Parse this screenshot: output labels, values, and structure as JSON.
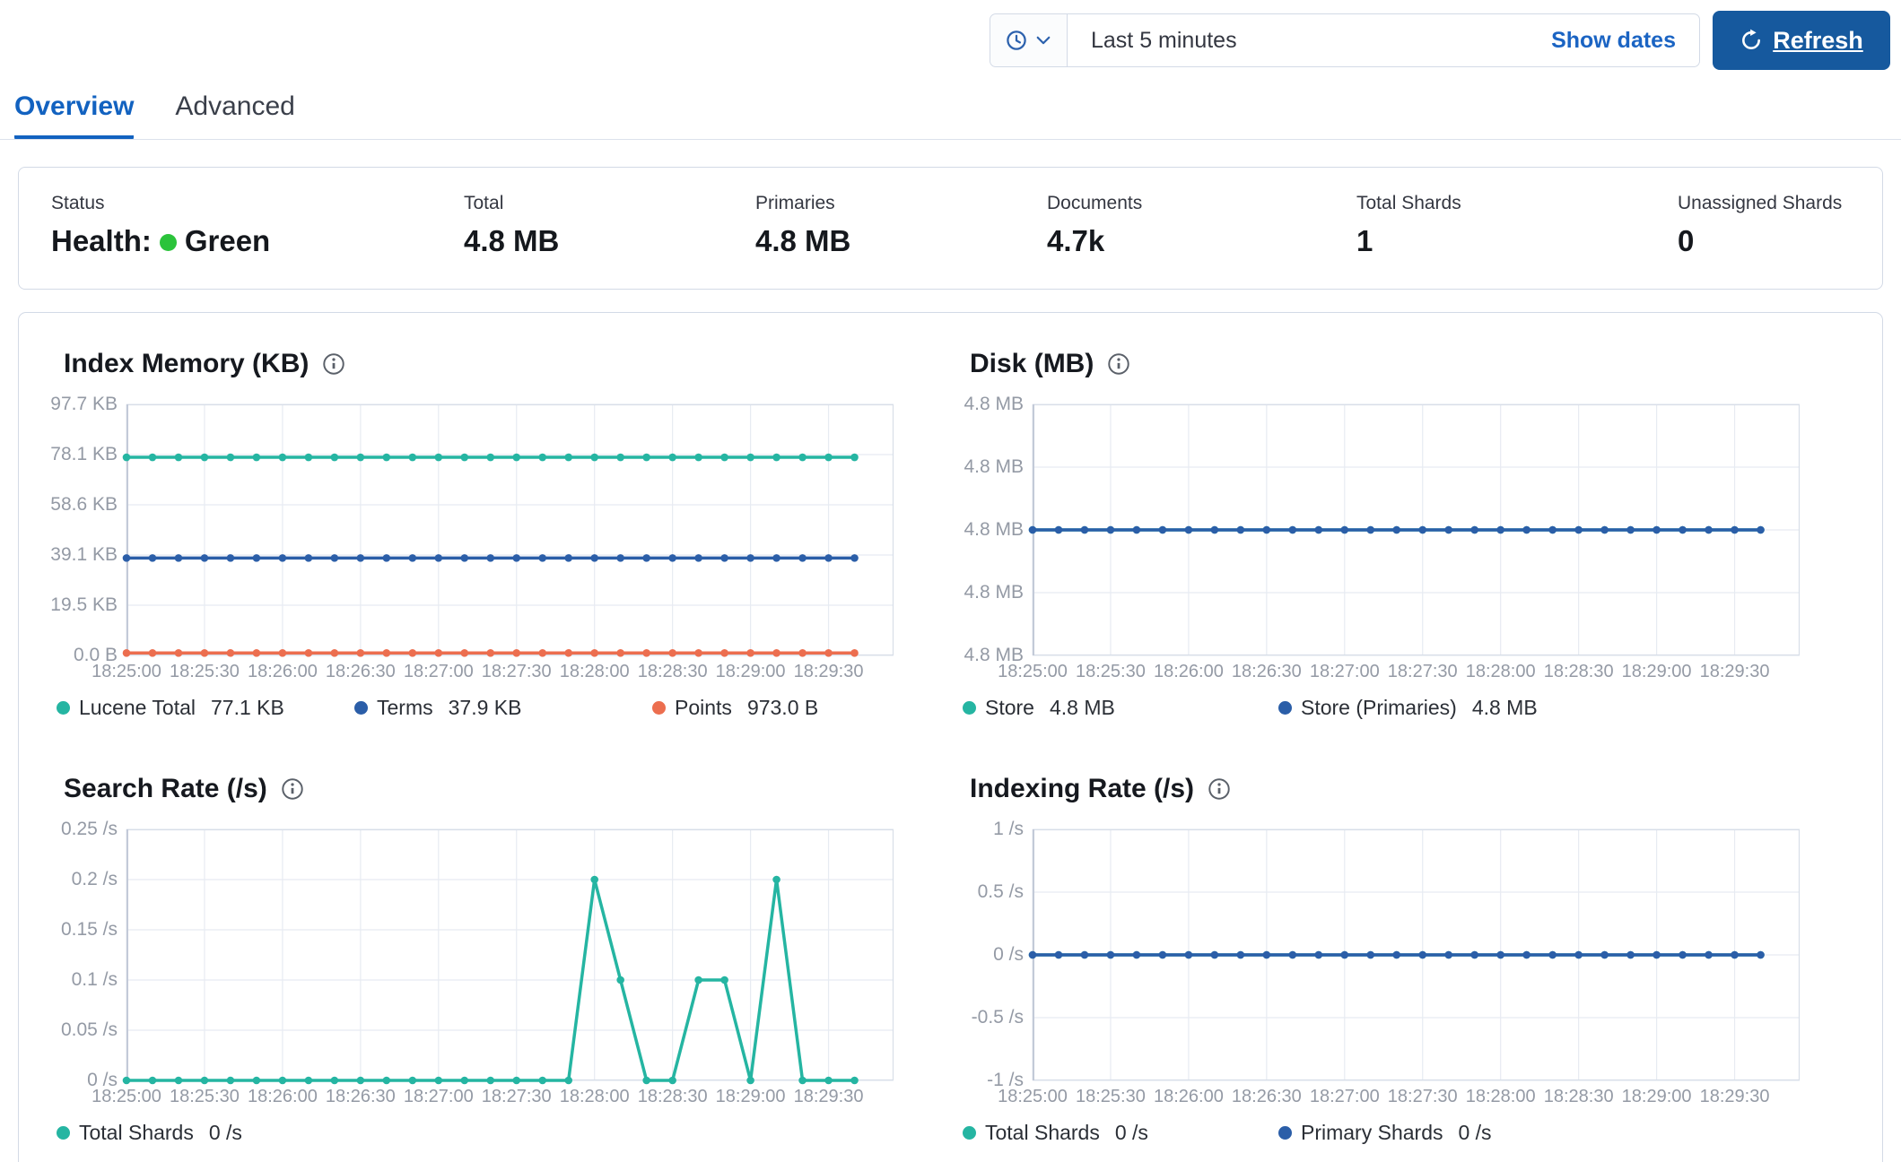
{
  "time_picker": {
    "selected": "Last 5 minutes",
    "show_dates_label": "Show dates",
    "refresh_label": "Refresh",
    "icons": [
      "clock-icon",
      "chevron-down-icon",
      "refresh-icon"
    ]
  },
  "tabs": [
    {
      "label": "Overview",
      "active": true
    },
    {
      "label": "Advanced",
      "active": false
    }
  ],
  "status_bar": {
    "items": [
      {
        "label": "Status",
        "value_prefix": "Health:",
        "value": "Green",
        "dot_color": "#2BC33B"
      },
      {
        "label": "Total",
        "value": "4.8 MB"
      },
      {
        "label": "Primaries",
        "value": "4.8 MB"
      },
      {
        "label": "Documents",
        "value": "4.7k"
      },
      {
        "label": "Total Shards",
        "value": "1"
      },
      {
        "label": "Unassigned Shards",
        "value": "0"
      }
    ]
  },
  "colors": {
    "teal": "#25B5A2",
    "blue": "#2B5EA8",
    "orange": "#EC6E4F",
    "link_blue": "#1B64C3",
    "button_blue": "#16599E",
    "panel_border": "#D3DAE6",
    "grid_line": "#E7EBF2",
    "axis_text": "#949AA5",
    "health_green": "#2BC33B"
  },
  "chart_data": [
    {
      "type": "line",
      "title": "Index Memory (KB)",
      "ylim": [
        0,
        97.7
      ],
      "y_tick_labels": [
        "97.7 KB",
        "78.1 KB",
        "58.6 KB",
        "39.1 KB",
        "19.5 KB",
        "0.0 B"
      ],
      "x_tick_labels": [
        "18:25:00",
        "18:25:30",
        "18:26:00",
        "18:26:30",
        "18:27:00",
        "18:27:30",
        "18:28:00",
        "18:28:30",
        "18:29:00",
        "18:29:30"
      ],
      "x_domain_s": [
        0,
        295
      ],
      "x_tick_step_s": 30,
      "point_step_s": 10,
      "series": [
        {
          "name": "Lucene Total",
          "color": "#25B5A2",
          "values": [
            77.1,
            77.1,
            77.1,
            77.1,
            77.1,
            77.1,
            77.1,
            77.1,
            77.1,
            77.1,
            77.1,
            77.1,
            77.1,
            77.1,
            77.1,
            77.1,
            77.1,
            77.1,
            77.1,
            77.1,
            77.1,
            77.1,
            77.1,
            77.1,
            77.1,
            77.1,
            77.1,
            77.1,
            77.1
          ]
        },
        {
          "name": "Terms",
          "color": "#2B5EA8",
          "values": [
            37.9,
            37.9,
            37.9,
            37.9,
            37.9,
            37.9,
            37.9,
            37.9,
            37.9,
            37.9,
            37.9,
            37.9,
            37.9,
            37.9,
            37.9,
            37.9,
            37.9,
            37.9,
            37.9,
            37.9,
            37.9,
            37.9,
            37.9,
            37.9,
            37.9,
            37.9,
            37.9,
            37.9,
            37.9
          ]
        },
        {
          "name": "Points",
          "color": "#EC6E4F",
          "values": [
            0.95,
            0.95,
            0.95,
            0.95,
            0.95,
            0.95,
            0.95,
            0.95,
            0.95,
            0.95,
            0.95,
            0.95,
            0.95,
            0.95,
            0.95,
            0.95,
            0.95,
            0.95,
            0.95,
            0.95,
            0.95,
            0.95,
            0.95,
            0.95,
            0.95,
            0.95,
            0.95,
            0.95,
            0.95
          ]
        }
      ],
      "legend": [
        {
          "label": "Lucene Total",
          "value": "77.1 KB"
        },
        {
          "label": "Terms",
          "value": "37.9 KB"
        },
        {
          "label": "Points",
          "value": "973.0 B"
        }
      ]
    },
    {
      "type": "line",
      "title": "Disk (MB)",
      "ylim": [
        4.798,
        4.802
      ],
      "y_tick_labels": [
        "4.8 MB",
        "4.8 MB",
        "4.8 MB",
        "4.8 MB",
        "4.8 MB"
      ],
      "x_tick_labels": [
        "18:25:00",
        "18:25:30",
        "18:26:00",
        "18:26:30",
        "18:27:00",
        "18:27:30",
        "18:28:00",
        "18:28:30",
        "18:29:00",
        "18:29:30"
      ],
      "x_domain_s": [
        0,
        295
      ],
      "x_tick_step_s": 30,
      "point_step_s": 10,
      "series": [
        {
          "name": "Store",
          "color": "#25B5A2",
          "values": [
            4.8,
            4.8,
            4.8,
            4.8,
            4.8,
            4.8,
            4.8,
            4.8,
            4.8,
            4.8,
            4.8,
            4.8,
            4.8,
            4.8,
            4.8,
            4.8,
            4.8,
            4.8,
            4.8,
            4.8,
            4.8,
            4.8,
            4.8,
            4.8,
            4.8,
            4.8,
            4.8,
            4.8,
            4.8
          ]
        },
        {
          "name": "Store (Primaries)",
          "color": "#2B5EA8",
          "values": [
            4.8,
            4.8,
            4.8,
            4.8,
            4.8,
            4.8,
            4.8,
            4.8,
            4.8,
            4.8,
            4.8,
            4.8,
            4.8,
            4.8,
            4.8,
            4.8,
            4.8,
            4.8,
            4.8,
            4.8,
            4.8,
            4.8,
            4.8,
            4.8,
            4.8,
            4.8,
            4.8,
            4.8,
            4.8
          ]
        }
      ],
      "legend": [
        {
          "label": "Store",
          "value": "4.8 MB"
        },
        {
          "label": "Store (Primaries)",
          "value": "4.8 MB"
        }
      ]
    },
    {
      "type": "line",
      "title": "Search Rate (/s)",
      "ylim": [
        0,
        0.25
      ],
      "y_tick_labels": [
        "0.25 /s",
        "0.2 /s",
        "0.15 /s",
        "0.1 /s",
        "0.05 /s",
        "0 /s"
      ],
      "x_tick_labels": [
        "18:25:00",
        "18:25:30",
        "18:26:00",
        "18:26:30",
        "18:27:00",
        "18:27:30",
        "18:28:00",
        "18:28:30",
        "18:29:00",
        "18:29:30"
      ],
      "x_domain_s": [
        0,
        295
      ],
      "x_tick_step_s": 30,
      "point_step_s": 10,
      "series": [
        {
          "name": "Total Shards",
          "color": "#25B5A2",
          "values": [
            0,
            0,
            0,
            0,
            0,
            0,
            0,
            0,
            0,
            0,
            0,
            0,
            0,
            0,
            0,
            0,
            0,
            0,
            0.2,
            0.1,
            0,
            0,
            0.1,
            0.1,
            0,
            0.2,
            0,
            0,
            0
          ]
        }
      ],
      "legend": [
        {
          "label": "Total Shards",
          "value": "0 /s"
        }
      ]
    },
    {
      "type": "line",
      "title": "Indexing Rate (/s)",
      "ylim": [
        -1,
        1
      ],
      "y_tick_labels": [
        "1 /s",
        "0.5 /s",
        "0 /s",
        "-0.5 /s",
        "-1 /s"
      ],
      "x_tick_labels": [
        "18:25:00",
        "18:25:30",
        "18:26:00",
        "18:26:30",
        "18:27:00",
        "18:27:30",
        "18:28:00",
        "18:28:30",
        "18:29:00",
        "18:29:30"
      ],
      "x_domain_s": [
        0,
        295
      ],
      "x_tick_step_s": 30,
      "point_step_s": 10,
      "series": [
        {
          "name": "Total Shards",
          "color": "#25B5A2",
          "values": [
            0,
            0,
            0,
            0,
            0,
            0,
            0,
            0,
            0,
            0,
            0,
            0,
            0,
            0,
            0,
            0,
            0,
            0,
            0,
            0,
            0,
            0,
            0,
            0,
            0,
            0,
            0,
            0,
            0
          ]
        },
        {
          "name": "Primary Shards",
          "color": "#2B5EA8",
          "values": [
            0,
            0,
            0,
            0,
            0,
            0,
            0,
            0,
            0,
            0,
            0,
            0,
            0,
            0,
            0,
            0,
            0,
            0,
            0,
            0,
            0,
            0,
            0,
            0,
            0,
            0,
            0,
            0,
            0
          ]
        }
      ],
      "legend": [
        {
          "label": "Total Shards",
          "value": "0 /s"
        },
        {
          "label": "Primary Shards",
          "value": "0 /s"
        }
      ]
    }
  ]
}
